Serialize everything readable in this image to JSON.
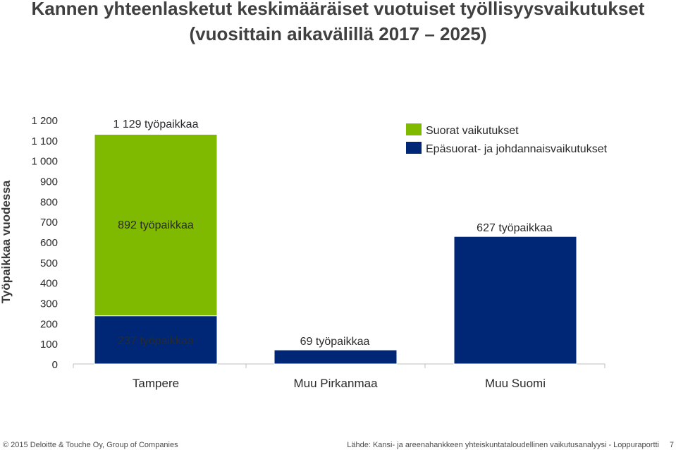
{
  "title_line1": "Kannen yhteenlasketut keskimääräiset vuotuiset työllisyysvaikutukset",
  "title_line2": "(vuosittain aikavälillä 2017 – 2025)",
  "footer": {
    "copyright": "© 2015 Deloitte & Touche Oy, Group of Companies",
    "source": "Lähde: Kansi- ja areenahankkeen yhteiskuntataloudellinen vaikutusanalyysi - Loppuraportti",
    "page_number": "7"
  },
  "colors": {
    "direct": "#7fba00",
    "indirect": "#002776"
  },
  "chart_data": {
    "type": "bar",
    "stacked": true,
    "categories": [
      "Tampere",
      "Muu Pirkanmaa",
      "Muu Suomi"
    ],
    "series": [
      {
        "name": "Epäsuorat- ja johdannaisvaikutukset",
        "values": [
          237,
          69,
          627
        ],
        "color": "#002776"
      },
      {
        "name": "Suorat vaikutukset",
        "values": [
          892,
          0,
          0
        ],
        "color": "#7fba00"
      }
    ],
    "ylabel": "Työpaikkaa vuodessa",
    "ylim": [
      0,
      1200
    ],
    "yticks": [
      "0",
      "100",
      "200",
      "300",
      "400",
      "500",
      "600",
      "700",
      "800",
      "900",
      "1 000",
      "1 100",
      "1 200"
    ],
    "legend": [
      "Suorat vaikutukset",
      "Epäsuorat- ja johdannaisvaikutukset"
    ],
    "legend_position": "top-right",
    "grid": false,
    "annotations": [
      {
        "text": "1 129 työpaikkaa",
        "category": "Tampere",
        "value": 1129
      },
      {
        "text": "892 työpaikkaa",
        "category": "Tampere",
        "value": 892
      },
      {
        "text": "237 työpaikkaa",
        "category": "Tampere",
        "value": 237
      },
      {
        "text": "69 työpaikkaa",
        "category": "Muu Pirkanmaa",
        "value": 69
      },
      {
        "text": "627 työpaikkaa",
        "category": "Muu Suomi",
        "value": 627
      }
    ]
  }
}
